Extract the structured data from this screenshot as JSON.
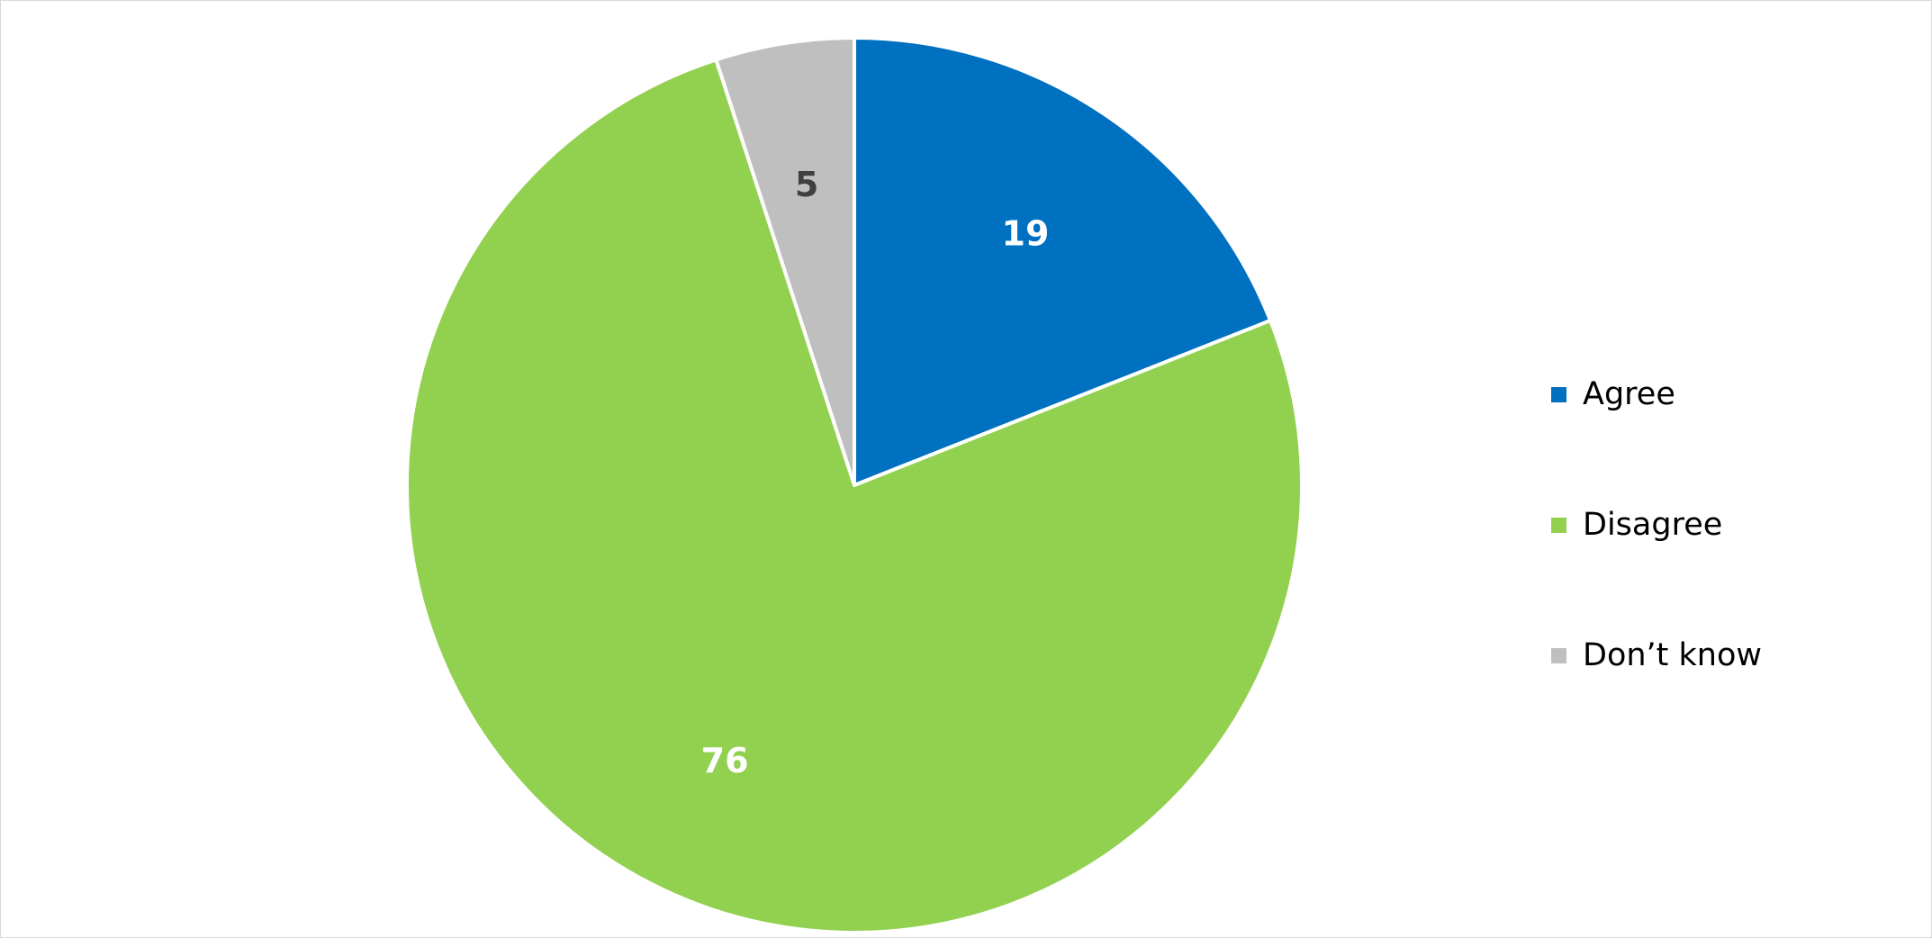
{
  "chart_data": {
    "type": "pie",
    "categories": [
      "Agree",
      "Disagree",
      "Don’t know"
    ],
    "values": [
      19,
      76,
      5
    ],
    "colors": [
      "#0070C0",
      "#92D050",
      "#BFBFBF"
    ],
    "label_colors": [
      "#FFFFFF",
      "#FFFFFF",
      "#404040"
    ],
    "data_labels": [
      "19",
      "76",
      "5"
    ],
    "legend_position": "right",
    "start_angle": "12 o'clock, clockwise"
  }
}
